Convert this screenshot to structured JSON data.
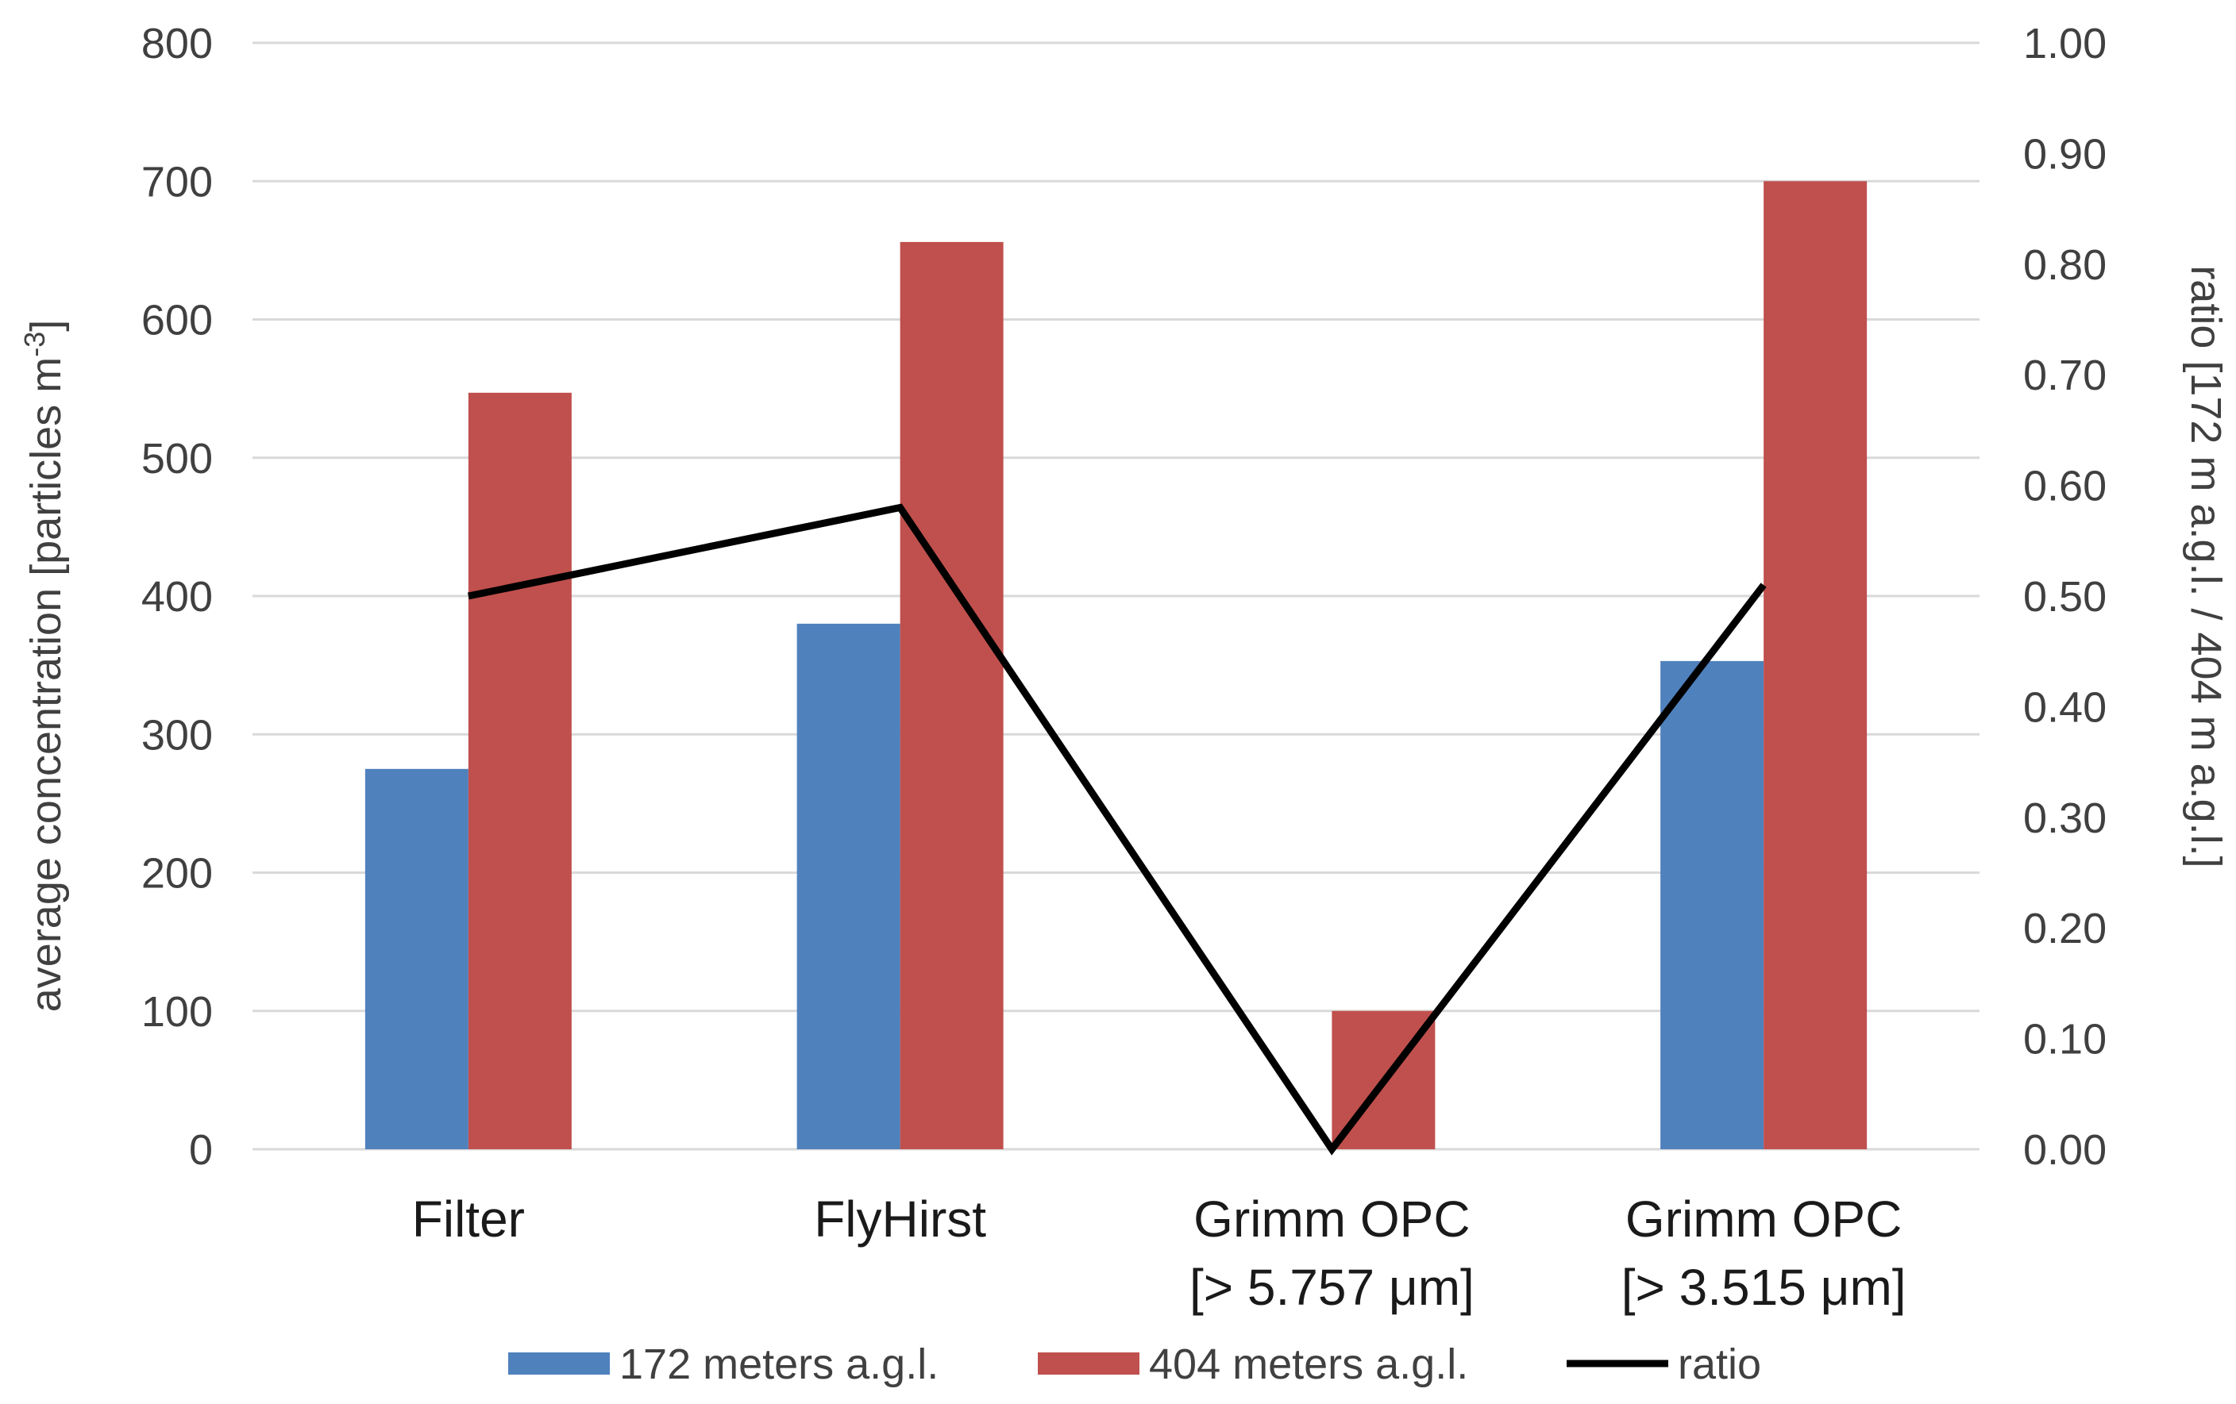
{
  "chart_data": {
    "type": "bar",
    "categories": [
      [
        "Filter"
      ],
      [
        "FlyHirst"
      ],
      [
        "Grimm OPC",
        "[> 5.757 μm]"
      ],
      [
        "Grimm OPC",
        "[> 3.515 μm]"
      ]
    ],
    "series": [
      {
        "name": "172 meters a.g.l.",
        "type": "bar",
        "axis": "left",
        "color": "#4f81bd",
        "values": [
          275,
          380,
          0,
          353
        ]
      },
      {
        "name": "404 meters a.g.l.",
        "type": "bar",
        "axis": "left",
        "color": "#c0504d",
        "values": [
          547,
          656,
          100,
          700
        ]
      },
      {
        "name": "ratio",
        "type": "line",
        "axis": "right",
        "color": "#000000",
        "values": [
          0.5,
          0.58,
          0.0,
          0.51
        ]
      }
    ],
    "ylabel": "average concentration [particles m",
    "ylabel_sup": "-3",
    "ylabel_end": "]",
    "ylim": [
      0,
      800
    ],
    "yticks": [
      "0",
      "100",
      "200",
      "300",
      "400",
      "500",
      "600",
      "700",
      "800"
    ],
    "y2label": "ratio [172 m a.g.l. / 404 m a.g.l.]",
    "y2lim": [
      0,
      1
    ],
    "y2ticks": [
      "0.00",
      "0.10",
      "0.20",
      "0.30",
      "0.40",
      "0.50",
      "0.60",
      "0.70",
      "0.80",
      "0.90",
      "1.00"
    ],
    "grid": true,
    "gridColor": "#d9d9d9",
    "legend_position": "bottom-center"
  }
}
